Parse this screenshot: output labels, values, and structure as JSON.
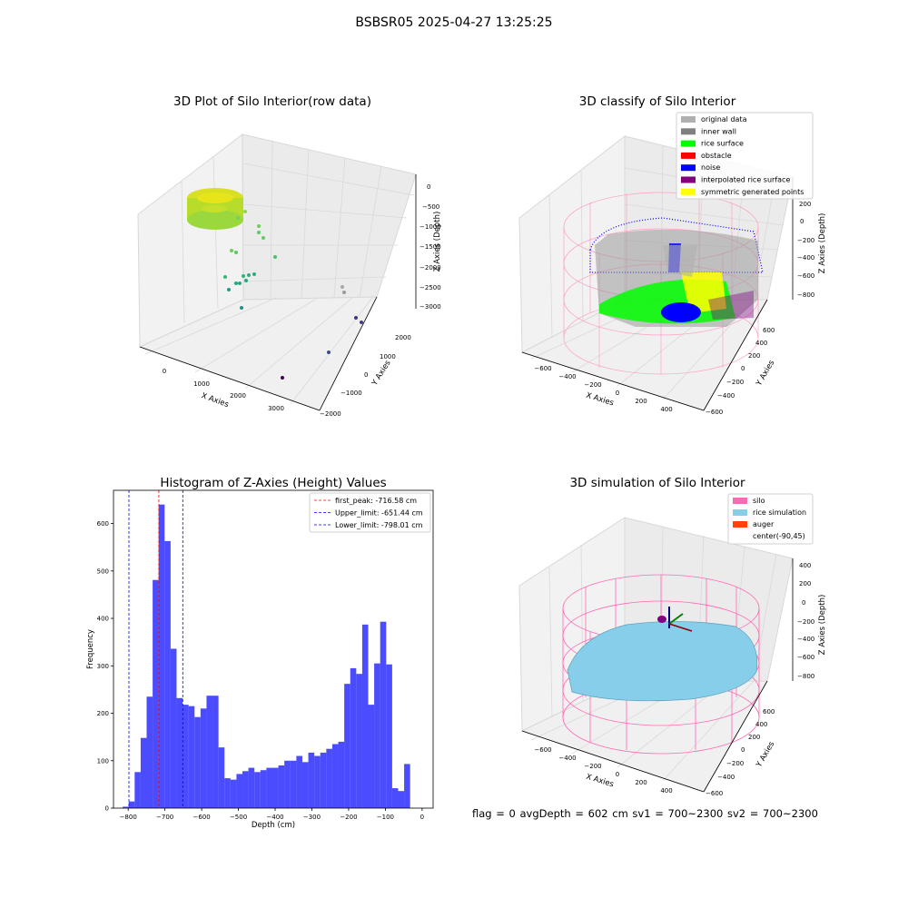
{
  "suptitle": "BSBSR05 2025-04-27 13:25:25",
  "status_line": "flag = 0     avgDepth = 602 cm  sv1 = 700~2300  sv2 = 700~2300",
  "raw_plot": {
    "title": "3D Plot of Silo Interior(row data)",
    "xlabel": "X Axies",
    "ylabel": "Y Axies",
    "zlabel": "Z Axies (Depth)",
    "x_ticks": [
      "0",
      "1000",
      "2000",
      "3000"
    ],
    "y_ticks": [
      "2000",
      "1000",
      "0",
      "−1000",
      "−2000"
    ],
    "z_ticks": [
      "0",
      "−500",
      "−1000",
      "−1500",
      "−2000",
      "−2500",
      "−3000"
    ]
  },
  "classify_plot": {
    "title": "3D classify of Silo Interior",
    "xlabel": "X Axies",
    "ylabel": "Y Axies",
    "zlabel": "Z Axies (Depth)",
    "x_ticks": [
      "−600",
      "−400",
      "−200",
      "0",
      "200",
      "400"
    ],
    "y_ticks": [
      "600",
      "400",
      "200",
      "0",
      "−200",
      "−400",
      "−600"
    ],
    "z_ticks": [
      "200",
      "0",
      "−200",
      "−400",
      "−600",
      "−800"
    ],
    "legend": [
      {
        "label": "original data",
        "color": "#b0b0b0"
      },
      {
        "label": "inner wall",
        "color": "#808080"
      },
      {
        "label": "rice surface",
        "color": "#00ff00"
      },
      {
        "label": "obstacle",
        "color": "#ff0000"
      },
      {
        "label": "noise",
        "color": "#0000ff"
      },
      {
        "label": "interpolated rice surface",
        "color": "#800080"
      },
      {
        "label": "symmetric generated points",
        "color": "#ffff00"
      }
    ]
  },
  "simulation_plot": {
    "title": "3D simulation of Silo Interior",
    "xlabel": "X Axies",
    "ylabel": "Y Axies",
    "zlabel": "Z Axies (Depth)",
    "x_ticks": [
      "−600",
      "−400",
      "−200",
      "0",
      "200",
      "400"
    ],
    "y_ticks": [
      "600",
      "400",
      "200",
      "0",
      "−200",
      "−400",
      "−600"
    ],
    "z_ticks": [
      "400",
      "200",
      "0",
      "−200",
      "−400",
      "−600",
      "−800"
    ],
    "legend": [
      {
        "label": "silo",
        "color": "#ff69b4"
      },
      {
        "label": "rice simulation",
        "color": "#87ceeb"
      },
      {
        "label": "auger",
        "color": "#ff4500"
      },
      {
        "label": "center(-90,45)",
        "color": "#ffffff"
      }
    ]
  },
  "chart_data": {
    "type": "bar",
    "title": "Histogram of Z-Axies (Height) Values",
    "xlabel": "Depth (cm)",
    "ylabel": "Frequency",
    "xlim": [
      -840,
      30
    ],
    "ylim": [
      0,
      670
    ],
    "x_ticks": [
      -800,
      -700,
      -600,
      -500,
      -400,
      -300,
      -200,
      -100,
      0
    ],
    "x_tick_labels": [
      "−800",
      "−700",
      "−600",
      "−500",
      "−400",
      "−300",
      "−200",
      "−100",
      "0"
    ],
    "y_ticks": [
      0,
      100,
      200,
      300,
      400,
      500,
      600
    ],
    "y_tick_labels": [
      "0",
      "100",
      "200",
      "300",
      "400",
      "500",
      "600"
    ],
    "bin_start": -815,
    "bin_width": 16.3,
    "bar_color": "#0000ff",
    "bar_opacity": 0.7,
    "values": [
      3,
      14,
      76,
      148,
      235,
      481,
      640,
      563,
      336,
      232,
      218,
      215,
      192,
      210,
      237,
      237,
      128,
      63,
      60,
      72,
      78,
      85,
      76,
      80,
      85,
      85,
      90,
      100,
      100,
      110,
      97,
      117,
      110,
      117,
      125,
      135,
      140,
      262,
      295,
      283,
      387,
      218,
      305,
      393,
      303,
      42,
      36,
      93
    ],
    "lines": [
      {
        "label": "first_peak: -716.58 cm",
        "x": -716.58,
        "color": "#ff0000"
      },
      {
        "label": "Upper_limit: -651.44 cm",
        "x": -651.44,
        "color": "#0000ff"
      },
      {
        "label": "Lower_limit: -798.01 cm",
        "x": -798.01,
        "color": "#0000ff"
      }
    ],
    "legend_position": "top-right",
    "grid": false
  }
}
